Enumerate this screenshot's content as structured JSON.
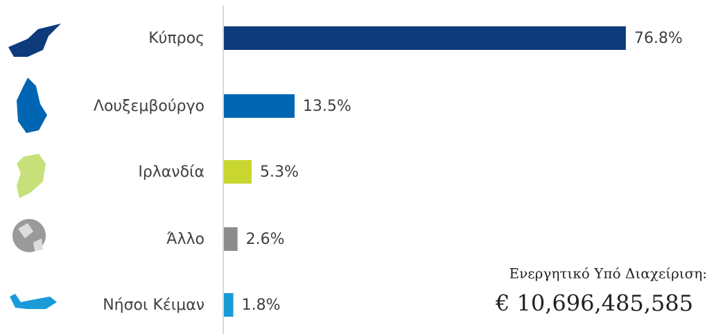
{
  "chart_data": {
    "type": "bar",
    "orientation": "horizontal",
    "categories": [
      "Κύπρος",
      "Λουξεμβούργο",
      "Ιρλανδία",
      "Άλλο",
      "Νήσοι Κέιμαν"
    ],
    "values": [
      76.8,
      13.5,
      5.3,
      2.6,
      1.8
    ],
    "value_labels": [
      "76.8%",
      "13.5%",
      "5.3%",
      "2.6%",
      "1.8%"
    ],
    "colors": [
      "#0d3b7c",
      "#0066b3",
      "#c8d62f",
      "#8c8c8c",
      "#1b9ad8"
    ],
    "annotation": {
      "label": "Ενεργητικό Υπό Διαχείριση:",
      "value": "€ 10,696,485,585"
    }
  }
}
